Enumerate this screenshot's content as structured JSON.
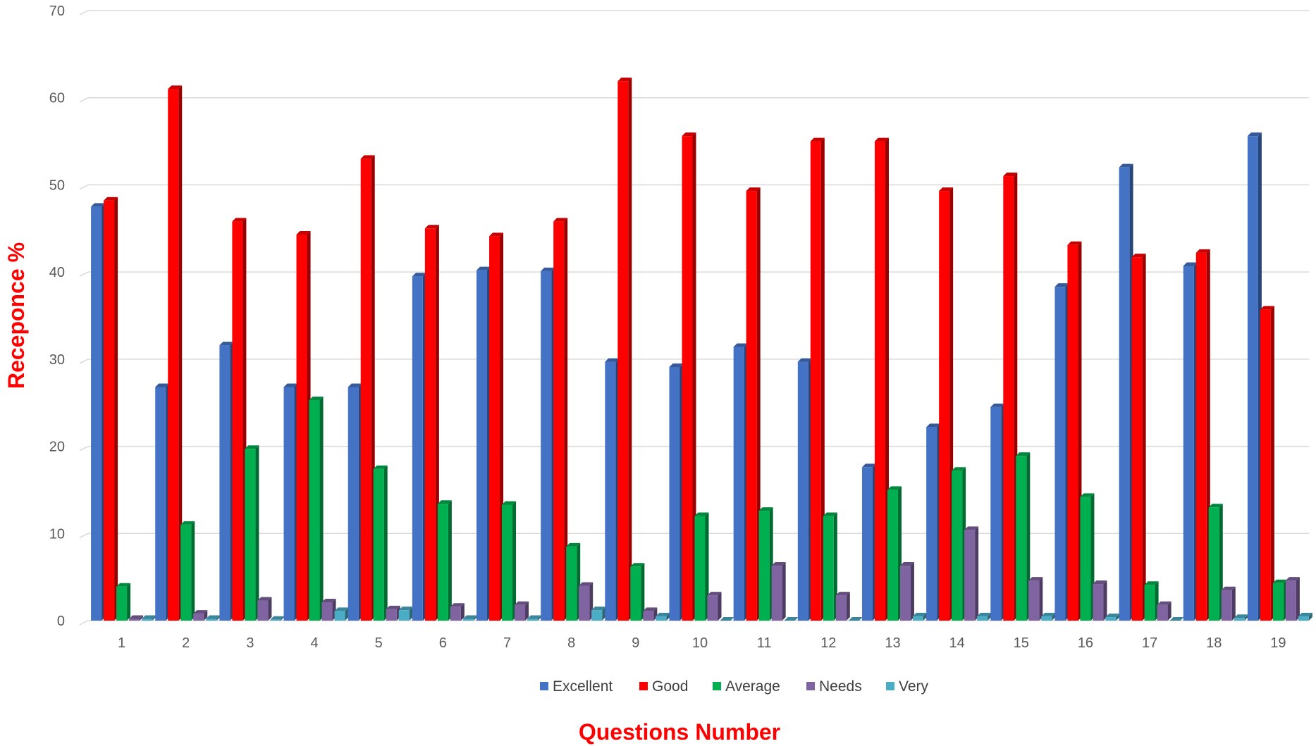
{
  "chart_data": {
    "type": "bar",
    "xlabel": "Questions Number",
    "ylabel": "Receponce %",
    "ylim": [
      0,
      70
    ],
    "yticks": [
      0,
      10,
      20,
      30,
      40,
      50,
      60,
      70
    ],
    "grid": true,
    "legend_position": "bottom",
    "categories": [
      "1",
      "2",
      "3",
      "4",
      "5",
      "6",
      "7",
      "8",
      "9",
      "10",
      "11",
      "12",
      "13",
      "14",
      "15",
      "16",
      "17",
      "18",
      "19"
    ],
    "series": [
      {
        "name": "Excellent",
        "color": "#4472c4",
        "values": [
          47.5,
          26.8,
          31.6,
          26.8,
          26.8,
          39.5,
          40.2,
          40.1,
          29.7,
          29.1,
          31.4,
          29.7,
          17.6,
          22.2,
          24.5,
          38.3,
          52.0,
          40.7,
          55.6
        ]
      },
      {
        "name": "Good",
        "color": "#ff0000",
        "values": [
          48.2,
          61.0,
          45.8,
          44.3,
          53.0,
          45.0,
          44.1,
          45.8,
          61.9,
          55.6,
          49.3,
          55.0,
          55.0,
          49.3,
          51.0,
          43.1,
          41.7,
          42.2,
          35.7
        ]
      },
      {
        "name": "Average",
        "color": "#00b050",
        "values": [
          3.9,
          11.0,
          19.7,
          25.3,
          17.4,
          13.4,
          13.3,
          8.5,
          6.2,
          12.0,
          12.6,
          12.0,
          15.0,
          17.2,
          18.9,
          14.2,
          4.1,
          13.0,
          4.3
        ]
      },
      {
        "name": "Needs",
        "color": "#8064a2",
        "values": [
          0.2,
          0.8,
          2.3,
          2.1,
          1.3,
          1.6,
          1.8,
          4.0,
          1.1,
          2.9,
          6.3,
          2.9,
          6.3,
          10.4,
          4.6,
          4.2,
          1.8,
          3.5,
          4.6
        ]
      },
      {
        "name": "Very",
        "color": "#4bacc6",
        "values": [
          0.2,
          0.2,
          0.1,
          1.1,
          1.2,
          0.2,
          0.2,
          1.2,
          0.5,
          0.0,
          0.0,
          0.0,
          0.5,
          0.5,
          0.5,
          0.4,
          0.0,
          0.3,
          0.5
        ]
      }
    ]
  }
}
